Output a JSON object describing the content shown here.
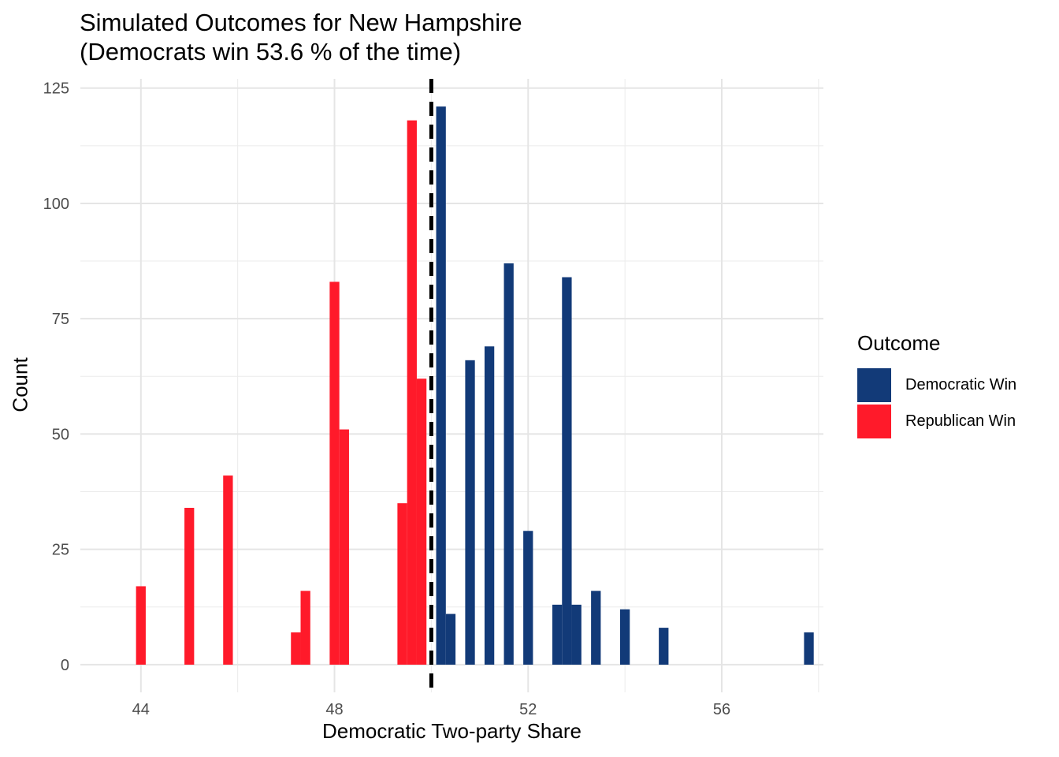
{
  "chart_data": {
    "type": "bar",
    "title_line1": "Simulated Outcomes for New Hampshire",
    "title_line2": "(Democrats win 53.6 % of the time)",
    "xlabel": "Democratic Two-party Share",
    "ylabel": "Count",
    "xlim": [
      42.75,
      58.1
    ],
    "ylim": [
      -6,
      127
    ],
    "x_ticks": [
      44,
      48,
      52,
      56
    ],
    "y_ticks": [
      0,
      25,
      50,
      75,
      100,
      125
    ],
    "threshold_line": {
      "x": 50,
      "style": "dashed",
      "color": "#000000"
    },
    "legend": {
      "title": "Outcome",
      "position": "right",
      "entries": [
        {
          "name": "Democratic Win",
          "color": "#123A78"
        },
        {
          "name": "Republican Win",
          "color": "#FF1A2A"
        }
      ]
    },
    "bin_width": 0.2,
    "series": [
      {
        "name": "Republican Win",
        "color": "#FF1A2A",
        "points": [
          {
            "x": 44.0,
            "y": 17
          },
          {
            "x": 45.0,
            "y": 34
          },
          {
            "x": 45.8,
            "y": 41
          },
          {
            "x": 47.2,
            "y": 7
          },
          {
            "x": 47.4,
            "y": 16
          },
          {
            "x": 48.0,
            "y": 83
          },
          {
            "x": 48.2,
            "y": 51
          },
          {
            "x": 49.4,
            "y": 35
          },
          {
            "x": 49.6,
            "y": 118
          },
          {
            "x": 49.8,
            "y": 62
          }
        ]
      },
      {
        "name": "Democratic Win",
        "color": "#123A78",
        "points": [
          {
            "x": 50.2,
            "y": 121
          },
          {
            "x": 50.4,
            "y": 11
          },
          {
            "x": 50.8,
            "y": 66
          },
          {
            "x": 51.2,
            "y": 69
          },
          {
            "x": 51.6,
            "y": 87
          },
          {
            "x": 52.0,
            "y": 29
          },
          {
            "x": 52.6,
            "y": 13
          },
          {
            "x": 52.8,
            "y": 84
          },
          {
            "x": 53.0,
            "y": 13
          },
          {
            "x": 53.4,
            "y": 16
          },
          {
            "x": 54.0,
            "y": 12
          },
          {
            "x": 54.8,
            "y": 8
          },
          {
            "x": 57.8,
            "y": 7
          }
        ]
      }
    ]
  }
}
